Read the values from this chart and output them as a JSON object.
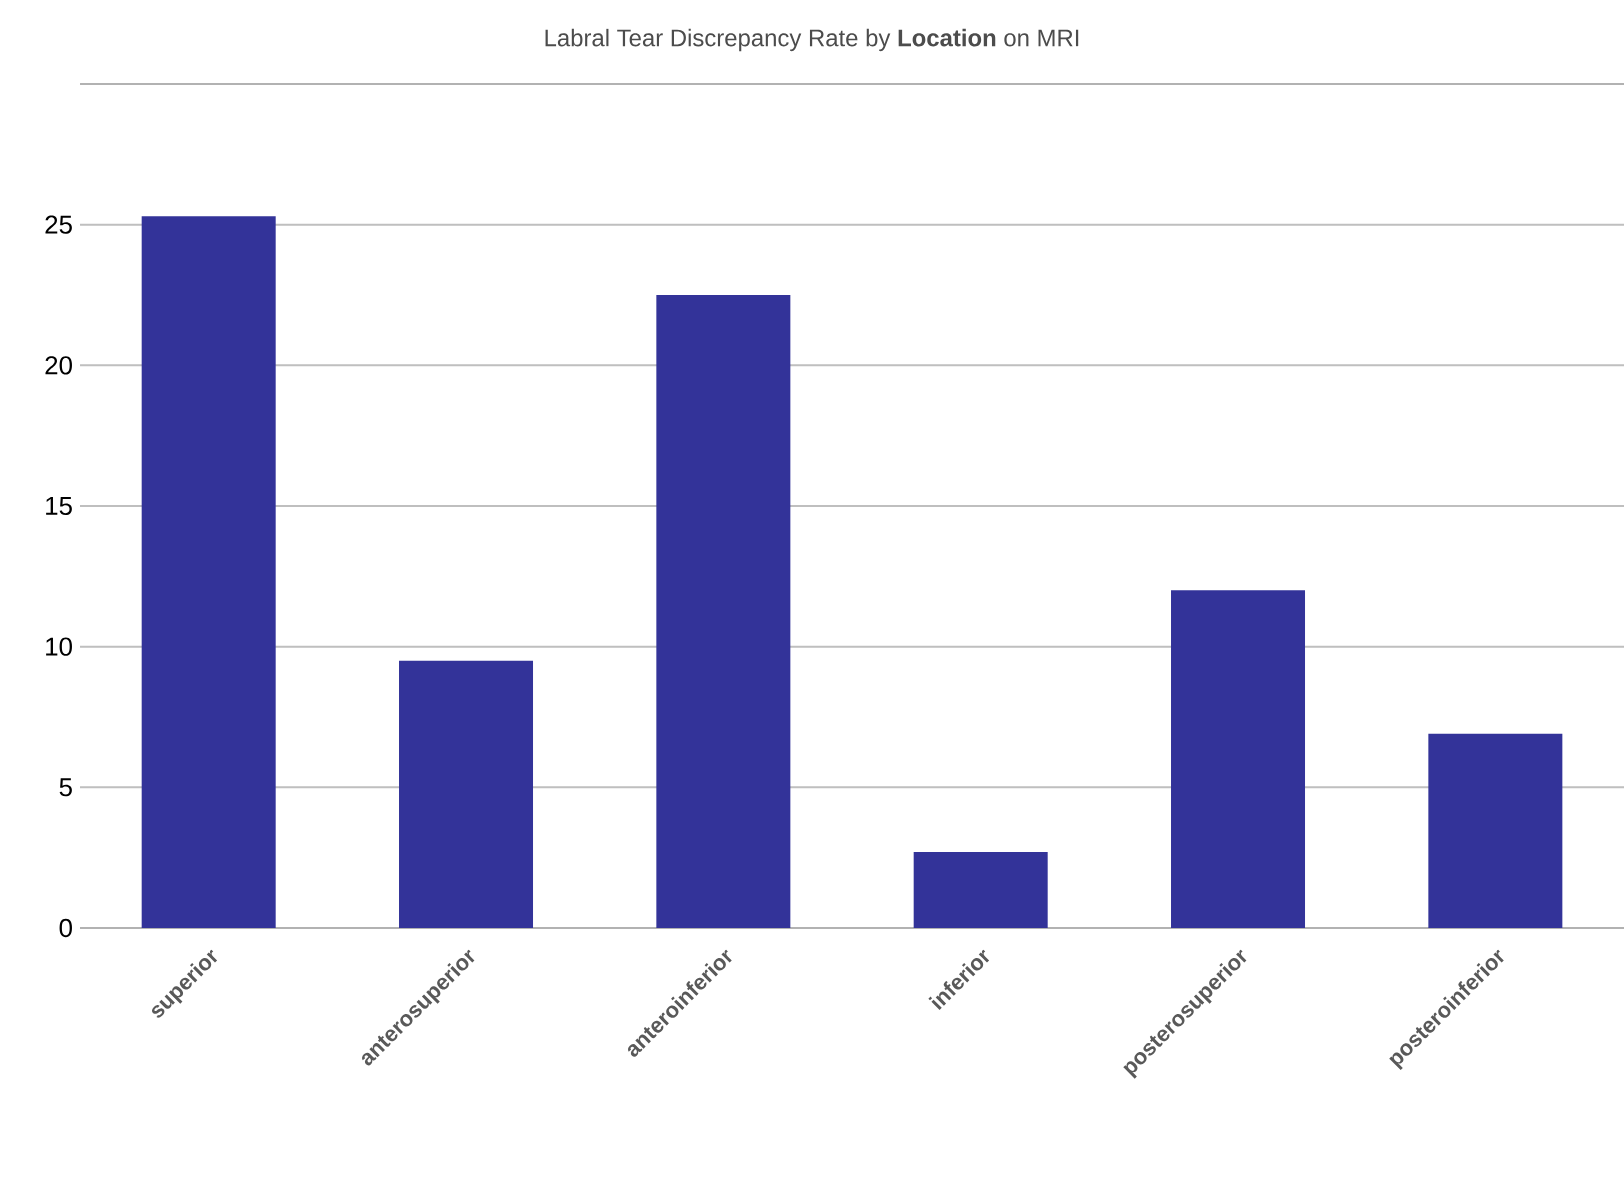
{
  "chart_data": {
    "type": "bar",
    "title": "Labral Tear Discrepancy Rate by **Location** on MRI",
    "categories": [
      "superior",
      "anterosuperior",
      "anteroinferior",
      "inferior",
      "posterosuperior",
      "posteroinferior"
    ],
    "values": [
      25.3,
      9.5,
      22.5,
      2.7,
      12.0,
      6.9
    ],
    "color": "#333399",
    "ylim": [
      0,
      30
    ],
    "yticks": [
      0,
      5,
      10,
      15,
      20,
      25
    ],
    "grid": "y"
  }
}
